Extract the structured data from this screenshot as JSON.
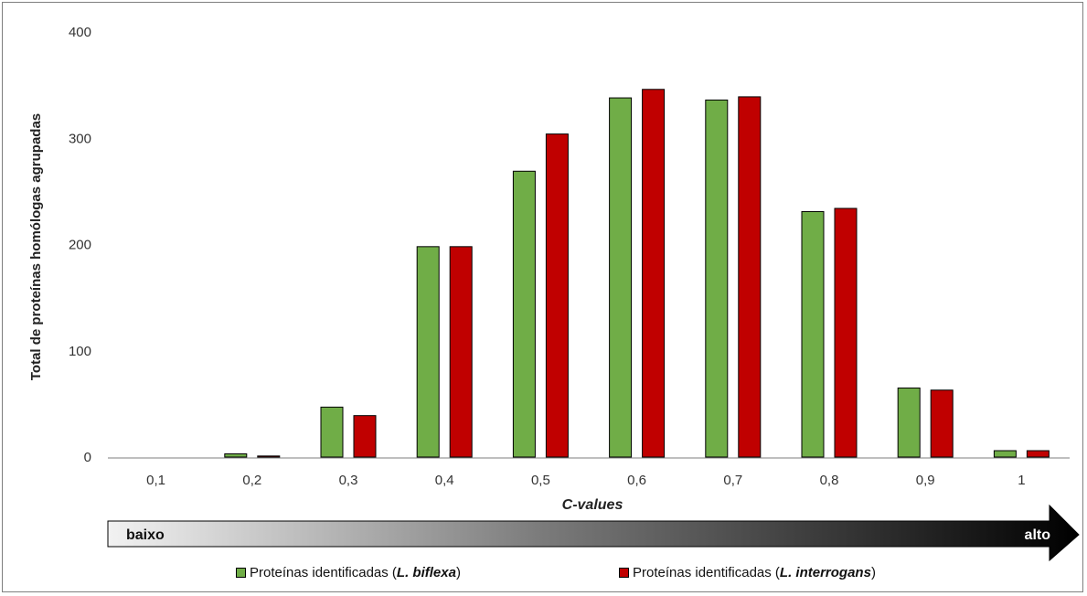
{
  "chart_data": {
    "type": "bar",
    "title": "",
    "xlabel": "C-values",
    "ylabel": "Total de proteínas homólogas agrupadas",
    "ylim": [
      0,
      400
    ],
    "yticks": [
      "0",
      "100",
      "200",
      "300",
      "400"
    ],
    "categories": [
      "0,1",
      "0,2",
      "0,3",
      "0,4",
      "0,5",
      "0,6",
      "0,7",
      "0,8",
      "0,9",
      "1"
    ],
    "series": [
      {
        "name": "Proteínas identificadas (L. biflexa)",
        "color": "#70ad47",
        "values": [
          0,
          3,
          47,
          198,
          269,
          338,
          336,
          231,
          65,
          6
        ]
      },
      {
        "name": "Proteínas identificadas (L. interrogans)",
        "color": "#c00000",
        "values": [
          0,
          1,
          39,
          198,
          304,
          346,
          339,
          234,
          63,
          6
        ]
      }
    ],
    "grid": false,
    "legend_position": "bottom"
  },
  "gradient_arrow": {
    "left_label": "baixo",
    "right_label": "alto"
  },
  "legend": [
    {
      "prefix": "Proteínas identificadas (",
      "species": "L. biflexa",
      "suffix": ")",
      "color": "#70ad47"
    },
    {
      "prefix": "Proteínas identificadas (",
      "species": "L. interrogans",
      "suffix": ")",
      "color": "#c00000"
    }
  ]
}
